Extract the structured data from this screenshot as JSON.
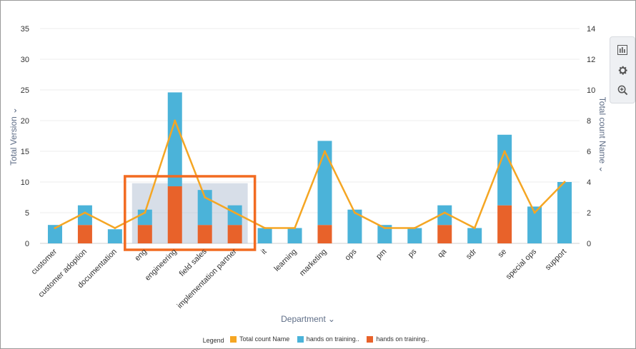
{
  "chart_data": {
    "type": "bar",
    "xlabel": "Department",
    "ylabel_left": "Total Version",
    "ylabel_right": "Total count Name",
    "ylim_left": [
      0,
      35
    ],
    "ylim_right": [
      0,
      14
    ],
    "yticks_left": [
      "0",
      "5",
      "10",
      "15",
      "20",
      "25",
      "30",
      "35"
    ],
    "yticks_right": [
      "0",
      "2",
      "4",
      "6",
      "8",
      "10",
      "12",
      "14"
    ],
    "grid": true,
    "legend_position": "bottom-center",
    "categories": [
      "customer",
      "customer adoption",
      "documentation",
      "eng",
      "engineering",
      "field sales",
      "implementation partner",
      "it",
      "learning",
      "marketing",
      "ops",
      "pm",
      "ps",
      "qa",
      "sdr",
      "se",
      "special ops",
      "support"
    ],
    "series": [
      {
        "name": "hands on training..",
        "kind": "bar",
        "axis": "left",
        "color": "#4bb3d9",
        "values": [
          3,
          3.2,
          2.3,
          2.5,
          15.3,
          5.7,
          3.2,
          2.5,
          2.5,
          13.7,
          5.5,
          3,
          2.5,
          3.2,
          2.5,
          11.5,
          6,
          10
        ]
      },
      {
        "name": "hands on training..",
        "kind": "bar",
        "axis": "left",
        "color": "#e8622a",
        "values": [
          0,
          3,
          0,
          3,
          9.3,
          3,
          3,
          0,
          0,
          3,
          0,
          0,
          0,
          3,
          0,
          6.2,
          0,
          0
        ]
      },
      {
        "name": "Total count Name",
        "kind": "line",
        "axis": "right",
        "color": "#f5a623",
        "values": [
          1,
          2,
          1,
          2,
          8,
          3,
          2,
          1,
          1,
          6,
          2,
          1,
          1,
          2,
          1,
          6,
          2,
          4
        ]
      }
    ],
    "highlight": {
      "categories": [
        "eng",
        "implementation partner"
      ]
    }
  },
  "legend": {
    "title": "Legend",
    "entries": [
      {
        "label": "Total count Name",
        "color": "#f5a623"
      },
      {
        "label": "hands on training..",
        "color": "#4bb3d9"
      },
      {
        "label": "hands on training..",
        "color": "#e8622a"
      }
    ]
  },
  "toolbar": {
    "buttons": [
      {
        "icon": "bar-chart-icon"
      },
      {
        "icon": "gear-icon"
      },
      {
        "icon": "zoom-in-icon"
      }
    ]
  }
}
